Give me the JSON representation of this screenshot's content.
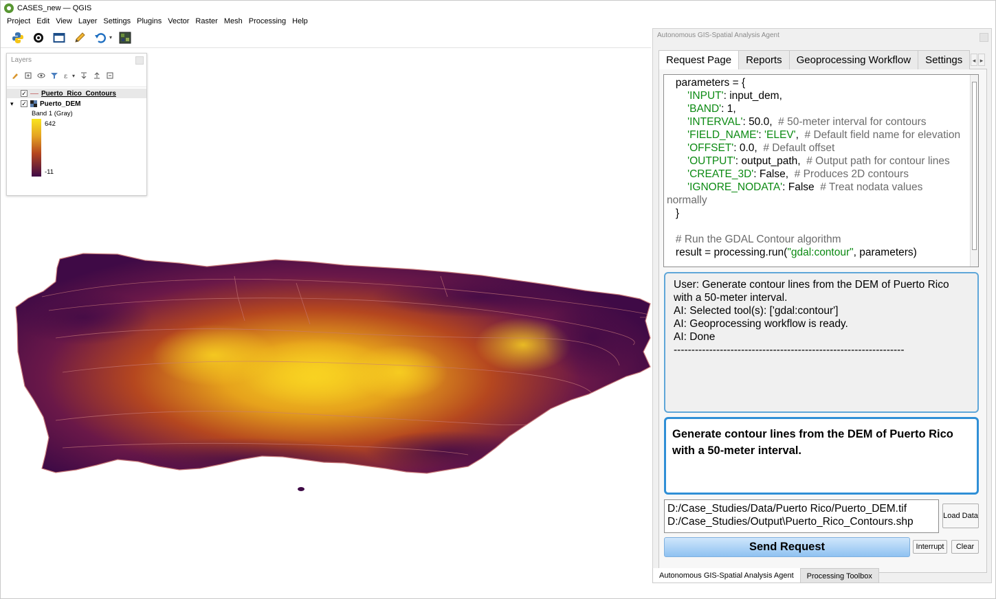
{
  "window": {
    "title": "CASES_new — QGIS"
  },
  "menu": [
    "Project",
    "Edit",
    "View",
    "Layer",
    "Settings",
    "Plugins",
    "Vector",
    "Raster",
    "Mesh",
    "Processing",
    "Help"
  ],
  "toolbar": {
    "icons": [
      "python-icon",
      "settings-plugin-icon",
      "map-window-icon",
      "pencil-icon",
      "undo-icon",
      "raster-icon"
    ]
  },
  "layers_panel": {
    "title": "Layers",
    "layers": [
      {
        "name": "Puerto_Rico_Contours",
        "checked": true
      },
      {
        "name": "Puerto_DEM",
        "checked": true,
        "band": "Band 1 (Gray)",
        "max": "642",
        "min": "-11"
      }
    ]
  },
  "agent": {
    "title": "Autonomous GIS-Spatial Analysis Agent",
    "tabs": [
      "Request Page",
      "Reports",
      "Geoprocessing Workflow",
      "Settings"
    ],
    "code_lines": [
      [
        {
          "t": "   parameters = {",
          "c": ""
        }
      ],
      [
        {
          "t": "       ",
          "c": ""
        },
        {
          "t": "'INPUT'",
          "c": "str"
        },
        {
          "t": ": input_dem,",
          "c": ""
        }
      ],
      [
        {
          "t": "       ",
          "c": ""
        },
        {
          "t": "'BAND'",
          "c": "str"
        },
        {
          "t": ": 1,",
          "c": ""
        }
      ],
      [
        {
          "t": "       ",
          "c": ""
        },
        {
          "t": "'INTERVAL'",
          "c": "str"
        },
        {
          "t": ": 50.0,  ",
          "c": ""
        },
        {
          "t": "# 50-meter interval for contours",
          "c": "cmt"
        }
      ],
      [
        {
          "t": "       ",
          "c": ""
        },
        {
          "t": "'FIELD_NAME'",
          "c": "str"
        },
        {
          "t": ": ",
          "c": ""
        },
        {
          "t": "'ELEV'",
          "c": "str"
        },
        {
          "t": ",  ",
          "c": ""
        },
        {
          "t": "# Default field name for elevation",
          "c": "cmt"
        }
      ],
      [
        {
          "t": "       ",
          "c": ""
        },
        {
          "t": "'OFFSET'",
          "c": "str"
        },
        {
          "t": ": 0.0,  ",
          "c": ""
        },
        {
          "t": "# Default offset",
          "c": "cmt"
        }
      ],
      [
        {
          "t": "       ",
          "c": ""
        },
        {
          "t": "'OUTPUT'",
          "c": "str"
        },
        {
          "t": ": output_path,  ",
          "c": ""
        },
        {
          "t": "# Output path for contour lines",
          "c": "cmt"
        }
      ],
      [
        {
          "t": "       ",
          "c": ""
        },
        {
          "t": "'CREATE_3D'",
          "c": "str"
        },
        {
          "t": ": False,  ",
          "c": ""
        },
        {
          "t": "# Produces 2D contours",
          "c": "cmt"
        }
      ],
      [
        {
          "t": "       ",
          "c": ""
        },
        {
          "t": "'IGNORE_NODATA'",
          "c": "str"
        },
        {
          "t": ": False  ",
          "c": ""
        },
        {
          "t": "# Treat nodata values",
          "c": "cmt"
        }
      ],
      [
        {
          "t": "normally",
          "c": "cmt"
        }
      ],
      [
        {
          "t": "   }",
          "c": ""
        }
      ],
      [
        {
          "t": "",
          "c": ""
        }
      ],
      [
        {
          "t": "   ",
          "c": ""
        },
        {
          "t": "# Run the GDAL Contour algorithm",
          "c": "cmt"
        }
      ],
      [
        {
          "t": "   result = processing.run(",
          "c": ""
        },
        {
          "t": "\"gdal:contour\"",
          "c": "str"
        },
        {
          "t": ", parameters)",
          "c": ""
        }
      ]
    ],
    "log_lines": [
      "User: Generate contour lines from the DEM of Puerto Rico with a 50-meter interval.",
      "AI: Selected tool(s): ['gdal:contour']",
      "AI: Geoprocessing workflow is ready.",
      "AI: Done",
      "-----------------------------------------------------------------"
    ],
    "request_text": "Generate contour lines from the DEM of Puerto Rico with a 50-meter interval.",
    "data_paths": [
      "D:/Case_Studies/Data/Puerto Rico/Puerto_DEM.tif",
      "D:/Case_Studies/Output\\Puerto_Rico_Contours.shp"
    ],
    "load_data_label": "Load Data",
    "send_label": "Send Request",
    "interrupt_label": "Interrupt",
    "clear_label": "Clear"
  },
  "bottom_tabs": [
    "Autonomous GIS-Spatial Analysis Agent",
    "Processing Toolbox"
  ],
  "colors": {
    "dem_high": "#f9d321",
    "dem_mid": "#c2481f",
    "dem_low": "#3f0a46",
    "contour": "#c87a7a",
    "accent": "#2f8fd6"
  }
}
